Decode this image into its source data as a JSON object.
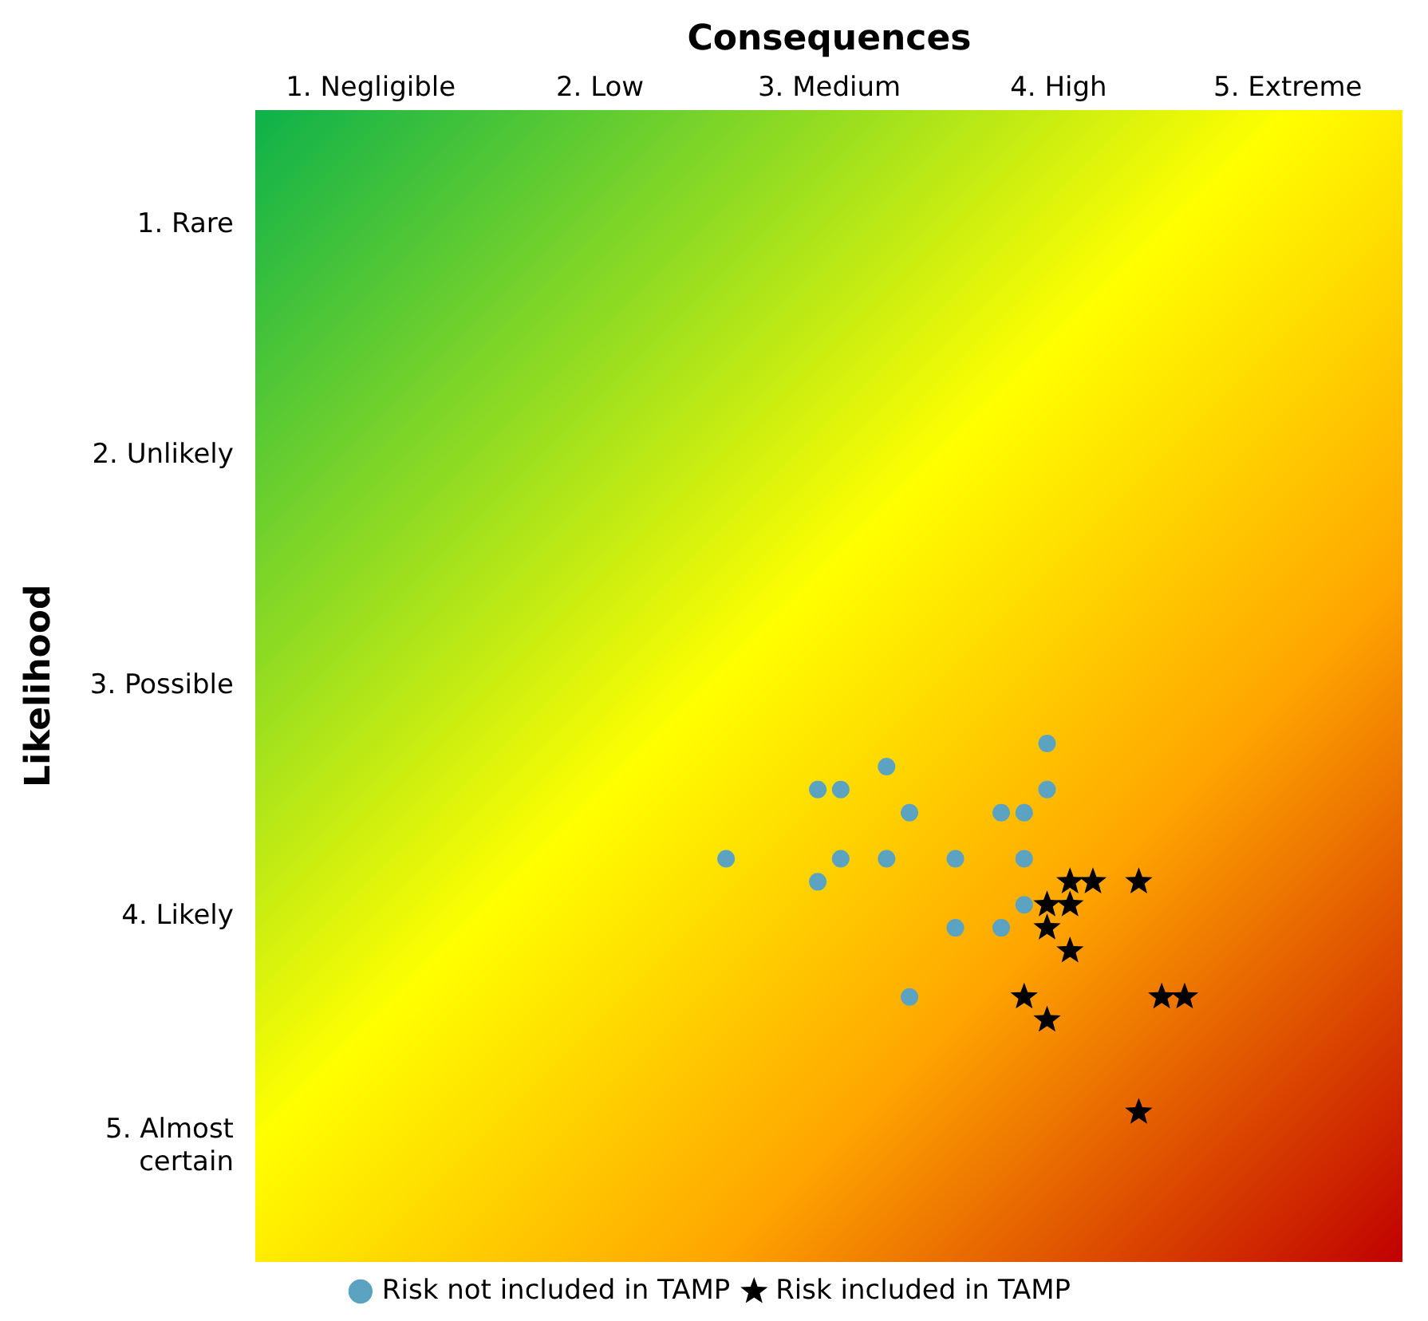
{
  "chart_data": {
    "type": "scatter",
    "xlabel": "Consequences",
    "ylabel": "Likelihood",
    "xlim": [
      0.5,
      5.5
    ],
    "ylim": [
      5.5,
      0.5
    ],
    "xticks": [
      {
        "value": 1,
        "label": "1. Negligible"
      },
      {
        "value": 2,
        "label": "2. Low"
      },
      {
        "value": 3,
        "label": "3. Medium"
      },
      {
        "value": 4,
        "label": "4. High"
      },
      {
        "value": 5,
        "label": "5. Extreme"
      }
    ],
    "yticks": [
      {
        "value": 1,
        "label": "1. Rare"
      },
      {
        "value": 2,
        "label": "2. Unlikely"
      },
      {
        "value": 3,
        "label": "3. Possible"
      },
      {
        "value": 4,
        "label": "4. Likely"
      },
      {
        "value": 5,
        "label": "5. Almost certain"
      }
    ],
    "grid": false,
    "legend": "bottom",
    "series": [
      {
        "name": "Risk not included in TAMP",
        "color": "#5ba3c0",
        "marker": "circle",
        "x": [
          3.95,
          2.95,
          3.05,
          3.25,
          3.35,
          3.75,
          3.85,
          3.95,
          2.55,
          3.05,
          3.25,
          3.55,
          3.85,
          2.95,
          3.85,
          3.55,
          3.75,
          3.35
        ],
        "values": [
          3.25,
          3.45,
          3.45,
          3.35,
          3.55,
          3.55,
          3.55,
          3.45,
          3.75,
          3.75,
          3.75,
          3.75,
          3.75,
          3.85,
          3.95,
          4.05,
          4.05,
          4.35
        ]
      },
      {
        "name": "Risk included in TAMP",
        "color": "#000000",
        "marker": "star",
        "x": [
          4.05,
          4.15,
          4.35,
          3.95,
          4.05,
          3.95,
          4.05,
          3.85,
          3.95,
          4.45,
          4.55,
          4.35
        ],
        "values": [
          3.85,
          3.85,
          3.85,
          3.95,
          3.95,
          4.05,
          4.15,
          4.35,
          4.45,
          4.35,
          4.35,
          4.85
        ]
      }
    ]
  }
}
